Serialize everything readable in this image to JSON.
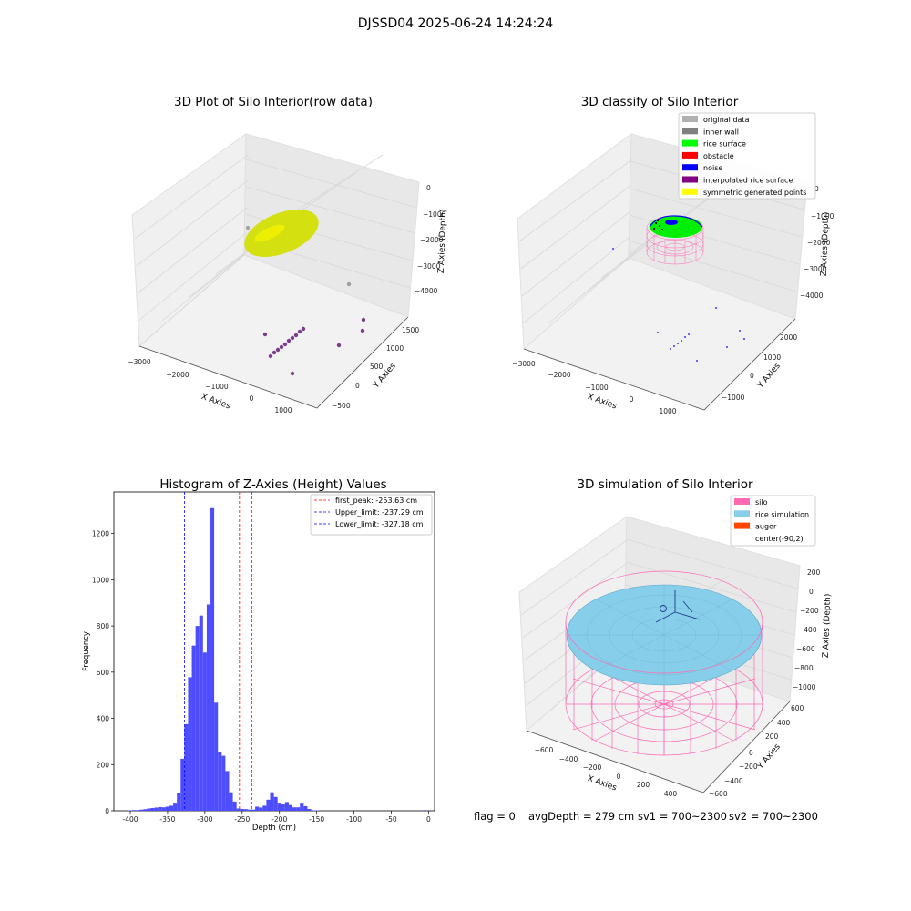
{
  "figure_title": "DJSSD04 2025-06-24 14:24:24",
  "chart_data": [
    {
      "type": "scatter3d",
      "title": "3D Plot of Silo Interior(row data)",
      "xlabel": "X Axies",
      "ylabel": "Y Axies",
      "zlabel": "Z Axies (Depth)",
      "x_ticks": [
        "−3000",
        "−2000",
        "−1000",
        "0",
        "1000"
      ],
      "y_ticks": [
        "−500",
        "0",
        "500",
        "1000",
        "1500"
      ],
      "z_ticks": [
        "0",
        "−1000",
        "−2000",
        "−3000",
        "−4000"
      ],
      "colors": {
        "surface": "#d4e010",
        "surface_highlight": "#f2f200",
        "points": "#7b3f8a",
        "grey_point": "#a0a0a0"
      }
    },
    {
      "type": "scatter3d",
      "title": "3D classify of Silo Interior",
      "xlabel": "X Axies",
      "ylabel": "Y Axies",
      "zlabel": "Z Axies (Depth)",
      "x_ticks": [
        "−3000",
        "−2000",
        "−1000",
        "0",
        "1000"
      ],
      "y_ticks": [
        "−1000",
        "0",
        "1000",
        "2000"
      ],
      "z_ticks": [
        "0",
        "−1000",
        "−2000",
        "−3000",
        "−4000"
      ],
      "legend": [
        {
          "label": "original data",
          "color": "#b0b0b0"
        },
        {
          "label": "inner wall",
          "color": "#808080"
        },
        {
          "label": "rice surface",
          "color": "#00ff00"
        },
        {
          "label": "obstacle",
          "color": "#ff0000"
        },
        {
          "label": "noise",
          "color": "#0000ff"
        },
        {
          "label": "interpolated rice surface",
          "color": "#800080"
        },
        {
          "label": "symmetric generated points",
          "color": "#ffff00"
        }
      ],
      "legend_placement": "top-right"
    },
    {
      "type": "bar",
      "title": "Histogram of Z-Axies (Height) Values",
      "xlabel": "Depth (cm)",
      "ylabel": "Frequency",
      "xlim": [
        -422,
        8
      ],
      "ylim": [
        0,
        1380
      ],
      "x_ticks": [
        -400,
        -350,
        -300,
        -250,
        -200,
        -150,
        -100,
        -50,
        0
      ],
      "y_ticks": [
        0,
        200,
        400,
        600,
        800,
        1000,
        1200
      ],
      "bin_width": 5,
      "bins": [
        {
          "x": -400,
          "y": 2
        },
        {
          "x": -395,
          "y": 3
        },
        {
          "x": -390,
          "y": 3
        },
        {
          "x": -385,
          "y": 5
        },
        {
          "x": -380,
          "y": 7
        },
        {
          "x": -375,
          "y": 10
        },
        {
          "x": -370,
          "y": 12
        },
        {
          "x": -365,
          "y": 14
        },
        {
          "x": -360,
          "y": 16
        },
        {
          "x": -355,
          "y": 15
        },
        {
          "x": -350,
          "y": 18
        },
        {
          "x": -345,
          "y": 22
        },
        {
          "x": -340,
          "y": 35
        },
        {
          "x": -335,
          "y": 75
        },
        {
          "x": -330,
          "y": 225
        },
        {
          "x": -325,
          "y": 375
        },
        {
          "x": -320,
          "y": 578
        },
        {
          "x": -315,
          "y": 715
        },
        {
          "x": -310,
          "y": 800
        },
        {
          "x": -305,
          "y": 845
        },
        {
          "x": -300,
          "y": 685
        },
        {
          "x": -295,
          "y": 893
        },
        {
          "x": -290,
          "y": 1310
        },
        {
          "x": -285,
          "y": 468
        },
        {
          "x": -280,
          "y": 253
        },
        {
          "x": -275,
          "y": 238
        },
        {
          "x": -270,
          "y": 172
        },
        {
          "x": -265,
          "y": 80
        },
        {
          "x": -260,
          "y": 40
        },
        {
          "x": -255,
          "y": 10
        },
        {
          "x": -250,
          "y": 8
        },
        {
          "x": -245,
          "y": 7
        },
        {
          "x": -240,
          "y": 5
        },
        {
          "x": -235,
          "y": 5
        },
        {
          "x": -230,
          "y": 18
        },
        {
          "x": -225,
          "y": 14
        },
        {
          "x": -220,
          "y": 22
        },
        {
          "x": -215,
          "y": 48
        },
        {
          "x": -210,
          "y": 80
        },
        {
          "x": -205,
          "y": 60
        },
        {
          "x": -200,
          "y": 35
        },
        {
          "x": -195,
          "y": 28
        },
        {
          "x": -190,
          "y": 38
        },
        {
          "x": -185,
          "y": 25
        },
        {
          "x": -180,
          "y": 15
        },
        {
          "x": -175,
          "y": 15
        },
        {
          "x": -170,
          "y": 35
        },
        {
          "x": -165,
          "y": 20
        },
        {
          "x": -160,
          "y": 8
        },
        {
          "x": -155,
          "y": 2
        },
        {
          "x": -150,
          "y": 2
        },
        {
          "x": -5,
          "y": 3
        }
      ],
      "vlines": [
        {
          "x": -253.63,
          "label": "first_peak: -253.63 cm",
          "color": "#ff0000"
        },
        {
          "x": -237.29,
          "label": "Upper_limit: -237.29 cm",
          "color": "#0000ff"
        },
        {
          "x": -327.18,
          "label": "Lower_limit: -327.18 cm",
          "color": "#0000ff"
        }
      ],
      "bar_color": "#4d4dff",
      "legend_placement": "top-right"
    },
    {
      "type": "surface3d",
      "title": "3D simulation of Silo Interior",
      "xlabel": "X Axies",
      "ylabel": "Y Axies",
      "zlabel": "Z Axies (Depth)",
      "x_ticks": [
        "−600",
        "−400",
        "−200",
        "0",
        "200",
        "400"
      ],
      "y_ticks": [
        "−600",
        "−400",
        "−200",
        "0",
        "200",
        "400",
        "600"
      ],
      "z_ticks": [
        "200",
        "0",
        "−200",
        "−400",
        "−600",
        "−800",
        "−1000"
      ],
      "legend": [
        {
          "label": "silo",
          "color": "#ff69b4"
        },
        {
          "label": "rice simulation",
          "color": "#87ceeb"
        },
        {
          "label": "auger",
          "color": "#ff4500"
        },
        {
          "label": "center(-90,2)",
          "color": ""
        }
      ],
      "legend_placement": "top-right"
    }
  ],
  "status": {
    "flag": "flag = 0",
    "avg_depth": "avgDepth = 279 cm",
    "sv1": "sv1 = 700~2300",
    "sv2": "sv2 = 700~2300"
  }
}
